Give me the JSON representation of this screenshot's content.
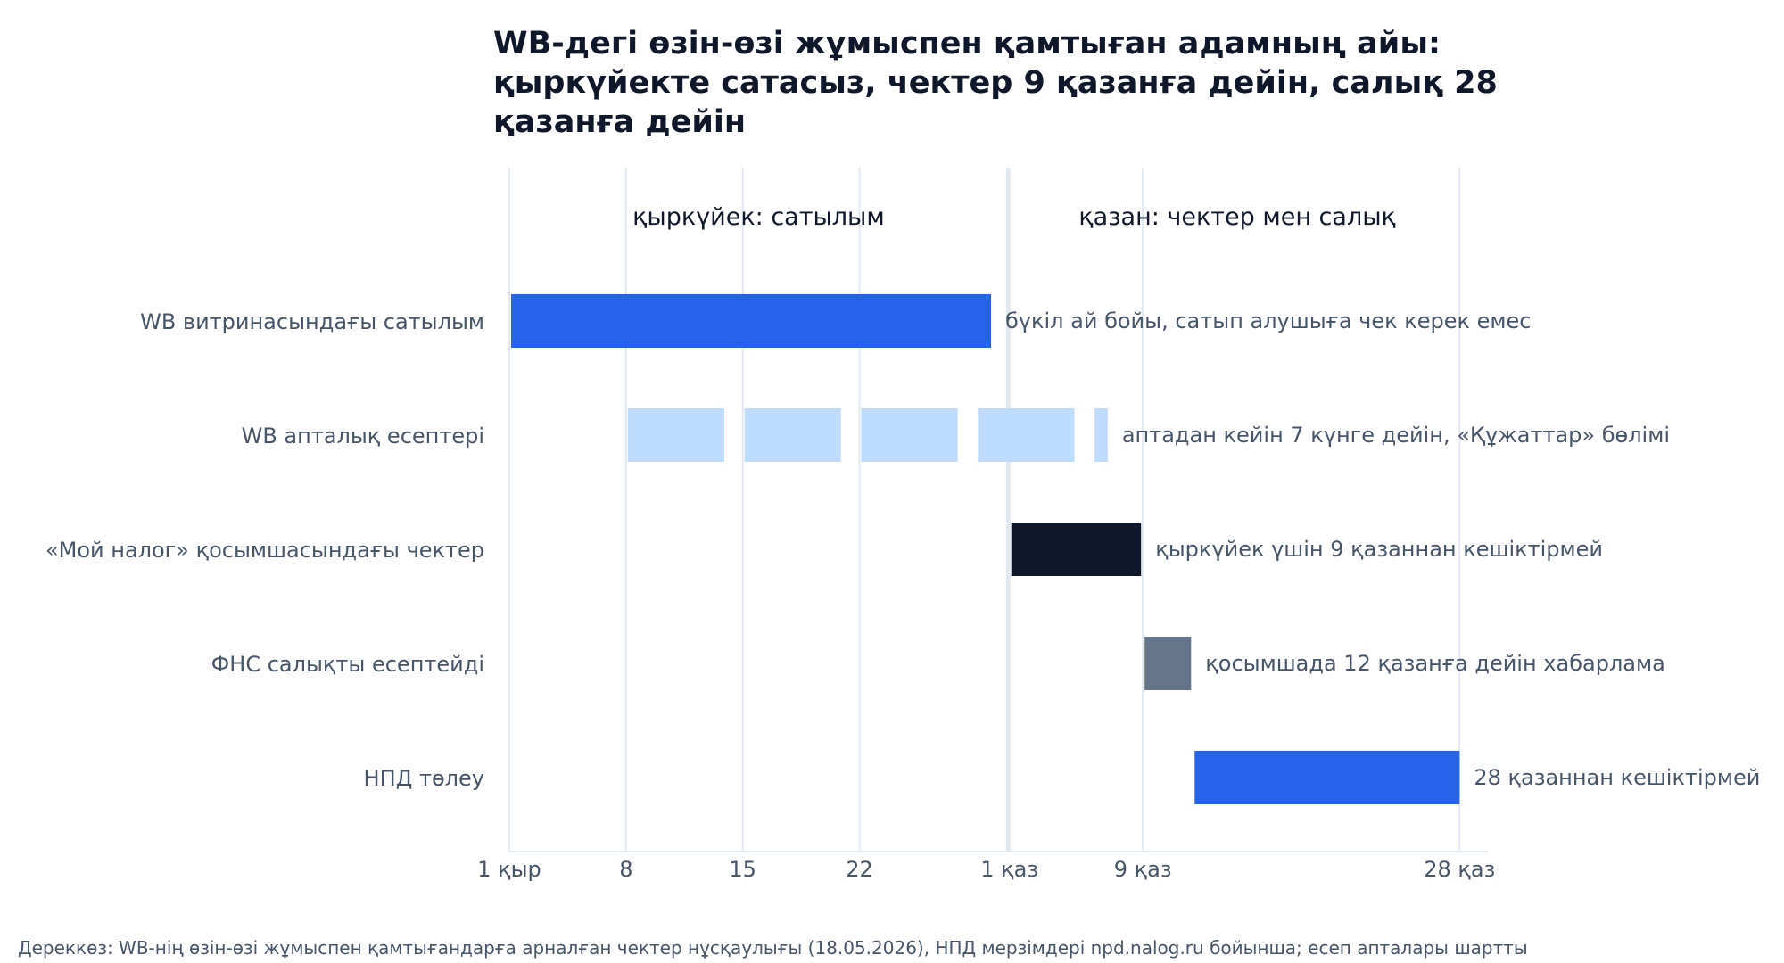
{
  "chart_data": {
    "type": "gantt",
    "title_lines": [
      "WB-дегі өзін-өзі жұмыспен қамтыған адамның айы:",
      "қыркүйекте сатасыз, чектер 9 қазанға дейін, салық 28",
      "қазанға дейін"
    ],
    "period_labels": [
      "қыркүйек: сатылым",
      "қазан: чектер мен салық"
    ],
    "x_unit": "day of period (1 = 1 Sep, 31 = 1 Oct)",
    "xlim": [
      1,
      59
    ],
    "month_divider": 30.9,
    "x_ticks": [
      {
        "value": 1,
        "label": "1 қыр"
      },
      {
        "value": 8,
        "label": "8"
      },
      {
        "value": 15,
        "label": "15"
      },
      {
        "value": 22,
        "label": "22"
      },
      {
        "value": 31,
        "label": "1 қаз"
      },
      {
        "value": 39,
        "label": "9 қаз"
      },
      {
        "value": 58,
        "label": "28 қаз"
      }
    ],
    "rows": [
      {
        "label": "WB витринасындағы сатылым",
        "note": "бүкіл ай бойы, сатып алушыға чек керек емес",
        "color": "#2563eb",
        "segments": [
          [
            1,
            30
          ]
        ]
      },
      {
        "label": "WB апталық есептері",
        "note": "аптадан кейін 7 күнге дейін, «Құжаттар» бөлімі",
        "color": "#bfdbfe",
        "segments": [
          [
            8,
            14
          ],
          [
            15,
            21
          ],
          [
            22,
            28
          ],
          [
            29,
            35
          ],
          [
            36,
            37
          ]
        ]
      },
      {
        "label": "«Мой налог» қосымшасындағы чектер",
        "note": "қыркүйек үшін 9 қазаннан кешіктірмей",
        "color": "#0f172a",
        "segments": [
          [
            31,
            39
          ]
        ]
      },
      {
        "label": "ФНС салықты есептейді",
        "note": "қосымшада 12 қазанға дейін хабарлама",
        "color": "#64748b",
        "segments": [
          [
            39,
            42
          ]
        ]
      },
      {
        "label": "НПД төлеу",
        "note": "28 қазаннан кешіктірмей",
        "color": "#2563eb",
        "segments": [
          [
            42,
            58
          ]
        ]
      }
    ],
    "grid": true,
    "source": "Дереккөз: WB-нің өзін-өзі жұмыспен қамтығандарға арналған чектер нұсқаулығы (18.05.2026), НПД мерзімдері npd.nalog.ru бойынша; есеп апталары шартты"
  }
}
